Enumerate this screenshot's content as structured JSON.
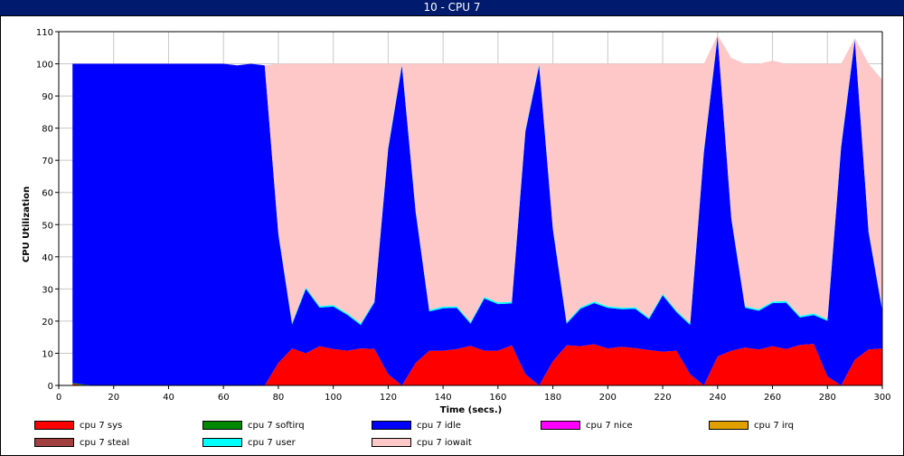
{
  "window": {
    "title": "10 - CPU 7"
  },
  "chart_data": {
    "type": "area",
    "stacked": true,
    "title": "10 - CPU 7",
    "xlabel": "Time (secs.)",
    "ylabel": "CPU Utilization",
    "xlim": [
      0,
      300
    ],
    "ylim": [
      0,
      110
    ],
    "xticks": [
      0,
      20,
      40,
      60,
      80,
      100,
      120,
      140,
      160,
      180,
      200,
      220,
      240,
      260,
      280,
      300
    ],
    "yticks": [
      0,
      10,
      20,
      30,
      40,
      50,
      60,
      70,
      80,
      90,
      100,
      110
    ],
    "grid": true,
    "legend_position": "bottom",
    "x": [
      5,
      10,
      15,
      20,
      25,
      30,
      35,
      40,
      45,
      50,
      55,
      60,
      65,
      70,
      75,
      80,
      85,
      90,
      95,
      100,
      105,
      110,
      115,
      120,
      125,
      130,
      135,
      140,
      145,
      150,
      155,
      160,
      165,
      170,
      175,
      180,
      185,
      190,
      195,
      200,
      205,
      210,
      215,
      220,
      225,
      230,
      235,
      240,
      245,
      250,
      255,
      260,
      265,
      270,
      275,
      280,
      285,
      290,
      295,
      300
    ],
    "series": [
      {
        "name": "cpu 7 sys",
        "color": "#ff0000",
        "values": [
          0.5,
          0,
          0,
          0,
          0,
          0,
          0,
          0,
          0,
          0,
          0,
          0,
          0,
          0,
          0,
          7,
          11.5,
          10,
          12.2,
          11.3,
          10.8,
          11.5,
          11.3,
          3.5,
          0,
          7,
          10.8,
          10.8,
          11.3,
          12.3,
          10.8,
          10.8,
          12.5,
          3.5,
          0,
          7.5,
          12.5,
          12.2,
          12.8,
          11.5,
          12,
          11.6,
          11,
          10.5,
          10.8,
          3.5,
          0,
          9,
          10.8,
          11.8,
          11.2,
          12.2,
          11.3,
          12.6,
          12.9,
          2.8,
          0,
          8,
          11.2,
          11.5
        ]
      },
      {
        "name": "cpu 7 softirq",
        "color": "#008800",
        "values": [
          0.3,
          0.2,
          0,
          0,
          0,
          0,
          0,
          0,
          0,
          0,
          0,
          0,
          0,
          0,
          0,
          0,
          0,
          0,
          0,
          0,
          0,
          0,
          0,
          0,
          0,
          0,
          0,
          0,
          0,
          0,
          0,
          0,
          0,
          0,
          0,
          0,
          0,
          0,
          0,
          0,
          0,
          0,
          0,
          0,
          0,
          0,
          0,
          0,
          0,
          0,
          0,
          0,
          0,
          0,
          0,
          0,
          0,
          0,
          0,
          0
        ]
      },
      {
        "name": "cpu 7 idle",
        "color": "#0000ff",
        "values": [
          99.2,
          99.8,
          100,
          100,
          100,
          100,
          100,
          100,
          100,
          100,
          100,
          100,
          99.5,
          100,
          99.5,
          40,
          7.5,
          20,
          12,
          13.2,
          11.2,
          7.3,
          14.5,
          70,
          99.5,
          47,
          12.2,
          13.2,
          12.8,
          6.9,
          16.2,
          14.5,
          13,
          75.5,
          99.5,
          41,
          6.7,
          11.6,
          12.8,
          12.6,
          11.7,
          12.2,
          9.6,
          17.5,
          12,
          15.3,
          72.5,
          99.5,
          41,
          12.3,
          12,
          13.4,
          14.4,
          8.5,
          9,
          17.3,
          74,
          99.5,
          36.5,
          11.7
        ]
      },
      {
        "name": "cpu 7 nice",
        "color": "#ff00ff",
        "values": [
          0,
          0,
          0,
          0,
          0,
          0,
          0,
          0,
          0,
          0,
          0,
          0,
          0,
          0,
          0,
          0,
          0,
          0,
          0,
          0,
          0,
          0,
          0,
          0,
          0,
          0,
          0,
          0,
          0,
          0,
          0,
          0,
          0,
          0,
          0,
          0,
          0,
          0,
          0,
          0,
          0,
          0,
          0,
          0,
          0,
          0,
          0,
          0,
          0,
          0,
          0,
          0,
          0,
          0,
          0,
          0,
          0,
          0,
          0,
          0
        ]
      },
      {
        "name": "cpu 7 irq",
        "color": "#e0a000",
        "values": [
          0,
          0,
          0,
          0,
          0,
          0,
          0,
          0,
          0,
          0,
          0,
          0,
          0,
          0,
          0,
          0,
          0,
          0,
          0,
          0,
          0,
          0,
          0,
          0,
          0,
          0,
          0,
          0,
          0,
          0,
          0,
          0,
          0,
          0,
          0,
          0,
          0,
          0,
          0,
          0,
          0,
          0,
          0,
          0,
          0,
          0,
          0,
          0,
          0,
          0,
          0,
          0,
          0,
          0,
          0,
          0,
          0,
          0,
          0,
          0
        ]
      },
      {
        "name": "cpu 7 steal",
        "color": "#a04040",
        "values": [
          0,
          0,
          0,
          0,
          0,
          0,
          0,
          0,
          0,
          0,
          0,
          0,
          0,
          0,
          0,
          0,
          0,
          0,
          0,
          0,
          0,
          0,
          0,
          0,
          0,
          0,
          0,
          0,
          0,
          0,
          0,
          0,
          0,
          0,
          0,
          0,
          0,
          0,
          0,
          0,
          0,
          0,
          0,
          0,
          0,
          0,
          0,
          0,
          0,
          0,
          0,
          0,
          0,
          0,
          0,
          0,
          0,
          0,
          0,
          0
        ]
      },
      {
        "name": "cpu 7 user",
        "color": "#00ffff",
        "values": [
          0,
          0,
          0,
          0,
          0,
          0,
          0,
          0,
          0,
          0,
          0,
          0,
          0,
          0,
          0,
          0.5,
          0.5,
          0.5,
          0.5,
          0.5,
          0.5,
          0.5,
          0.5,
          0.5,
          0.5,
          0.5,
          0.5,
          0.5,
          0.5,
          0.5,
          0.5,
          0.5,
          0.5,
          0.5,
          0.5,
          0.5,
          0.5,
          0.5,
          0.5,
          0.5,
          0.5,
          0.5,
          0.5,
          0.5,
          0.5,
          0.5,
          0.5,
          0.5,
          0.5,
          0.5,
          0.5,
          0.5,
          0.5,
          0.5,
          0.5,
          0.5,
          0.5,
          0.5,
          0.5,
          0.5
        ]
      },
      {
        "name": "cpu 7 iowait",
        "color": "#ffc8c8",
        "values": [
          0,
          0,
          0,
          0,
          0,
          0,
          0,
          0,
          0,
          0,
          0,
          0,
          0,
          0,
          0,
          52.5,
          80.5,
          69.5,
          75.3,
          75,
          77.5,
          80.7,
          73.7,
          26,
          0,
          45.5,
          76.5,
          75.5,
          75.4,
          80.3,
          72.5,
          74.2,
          74,
          20.5,
          0,
          51,
          80.3,
          75.7,
          73.9,
          75.4,
          75.8,
          75.7,
          78.9,
          71.5,
          76.7,
          80.7,
          27,
          0,
          49.5,
          75.4,
          76.3,
          74.9,
          73.8,
          78.4,
          77.6,
          79.4,
          25.5,
          0,
          51.8,
          71.3
        ]
      }
    ]
  }
}
